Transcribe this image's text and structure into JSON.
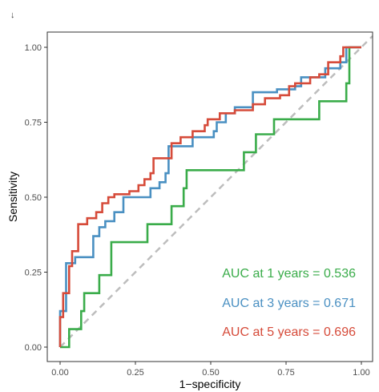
{
  "corner_mark": "↓",
  "chart_data": {
    "type": "line",
    "xlabel": "1−specificity",
    "ylabel": "Sensitivity",
    "xlim": [
      0,
      1
    ],
    "ylim": [
      0,
      1
    ],
    "x_ticks": [
      "0.00",
      "0.25",
      "0.50",
      "0.75",
      "1.00"
    ],
    "y_ticks": [
      "0.00",
      "0.25",
      "0.50",
      "0.75",
      "1.00"
    ],
    "grid": false,
    "reference_line": {
      "from": [
        0,
        0
      ],
      "to": [
        1,
        1
      ],
      "style": "dashed",
      "color": "#bdbdbd"
    },
    "annotations": [
      {
        "text": "AUC at 1 years = 0.536",
        "color": "#3aac4a"
      },
      {
        "text": "AUC at 3 years = 0.671",
        "color": "#4a90c2"
      },
      {
        "text": "AUC at 5 years = 0.696",
        "color": "#d64b3a"
      }
    ],
    "series": [
      {
        "color": "#3aac4a",
        "points": [
          [
            0,
            0
          ],
          [
            0.03,
            0
          ],
          [
            0.03,
            0.06
          ],
          [
            0.07,
            0.06
          ],
          [
            0.07,
            0.12
          ],
          [
            0.08,
            0.12
          ],
          [
            0.08,
            0.18
          ],
          [
            0.13,
            0.18
          ],
          [
            0.13,
            0.24
          ],
          [
            0.17,
            0.24
          ],
          [
            0.17,
            0.35
          ],
          [
            0.29,
            0.35
          ],
          [
            0.29,
            0.41
          ],
          [
            0.37,
            0.41
          ],
          [
            0.37,
            0.47
          ],
          [
            0.41,
            0.47
          ],
          [
            0.41,
            0.53
          ],
          [
            0.42,
            0.53
          ],
          [
            0.42,
            0.59
          ],
          [
            0.61,
            0.59
          ],
          [
            0.61,
            0.65
          ],
          [
            0.65,
            0.65
          ],
          [
            0.65,
            0.71
          ],
          [
            0.71,
            0.71
          ],
          [
            0.71,
            0.76
          ],
          [
            0.86,
            0.76
          ],
          [
            0.86,
            0.82
          ],
          [
            0.95,
            0.82
          ],
          [
            0.95,
            0.88
          ],
          [
            0.96,
            0.88
          ],
          [
            0.96,
            1.0
          ],
          [
            1.0,
            1.0
          ]
        ]
      },
      {
        "color": "#4a90c2",
        "points": [
          [
            0,
            0
          ],
          [
            0,
            0.12
          ],
          [
            0.02,
            0.12
          ],
          [
            0.02,
            0.28
          ],
          [
            0.05,
            0.28
          ],
          [
            0.05,
            0.3
          ],
          [
            0.11,
            0.3
          ],
          [
            0.11,
            0.37
          ],
          [
            0.13,
            0.37
          ],
          [
            0.13,
            0.4
          ],
          [
            0.15,
            0.4
          ],
          [
            0.15,
            0.42
          ],
          [
            0.18,
            0.42
          ],
          [
            0.18,
            0.45
          ],
          [
            0.21,
            0.45
          ],
          [
            0.21,
            0.5
          ],
          [
            0.3,
            0.5
          ],
          [
            0.3,
            0.53
          ],
          [
            0.33,
            0.53
          ],
          [
            0.33,
            0.55
          ],
          [
            0.35,
            0.55
          ],
          [
            0.35,
            0.58
          ],
          [
            0.36,
            0.58
          ],
          [
            0.36,
            0.67
          ],
          [
            0.44,
            0.67
          ],
          [
            0.44,
            0.7
          ],
          [
            0.51,
            0.7
          ],
          [
            0.51,
            0.72
          ],
          [
            0.52,
            0.72
          ],
          [
            0.52,
            0.75
          ],
          [
            0.55,
            0.75
          ],
          [
            0.55,
            0.78
          ],
          [
            0.58,
            0.78
          ],
          [
            0.58,
            0.8
          ],
          [
            0.64,
            0.8
          ],
          [
            0.64,
            0.85
          ],
          [
            0.72,
            0.85
          ],
          [
            0.72,
            0.86
          ],
          [
            0.78,
            0.86
          ],
          [
            0.78,
            0.87
          ],
          [
            0.8,
            0.87
          ],
          [
            0.8,
            0.9
          ],
          [
            0.88,
            0.9
          ],
          [
            0.88,
            0.93
          ],
          [
            0.93,
            0.93
          ],
          [
            0.93,
            0.95
          ],
          [
            0.95,
            0.95
          ],
          [
            0.95,
            1.0
          ],
          [
            1.0,
            1.0
          ]
        ]
      },
      {
        "color": "#d64b3a",
        "points": [
          [
            0,
            0
          ],
          [
            0,
            0.1
          ],
          [
            0.01,
            0.1
          ],
          [
            0.01,
            0.18
          ],
          [
            0.03,
            0.18
          ],
          [
            0.03,
            0.27
          ],
          [
            0.04,
            0.27
          ],
          [
            0.04,
            0.32
          ],
          [
            0.06,
            0.32
          ],
          [
            0.06,
            0.41
          ],
          [
            0.09,
            0.41
          ],
          [
            0.09,
            0.43
          ],
          [
            0.12,
            0.43
          ],
          [
            0.12,
            0.45
          ],
          [
            0.14,
            0.45
          ],
          [
            0.14,
            0.48
          ],
          [
            0.16,
            0.48
          ],
          [
            0.16,
            0.5
          ],
          [
            0.18,
            0.5
          ],
          [
            0.18,
            0.51
          ],
          [
            0.23,
            0.51
          ],
          [
            0.23,
            0.52
          ],
          [
            0.26,
            0.52
          ],
          [
            0.26,
            0.54
          ],
          [
            0.28,
            0.54
          ],
          [
            0.28,
            0.56
          ],
          [
            0.3,
            0.56
          ],
          [
            0.3,
            0.58
          ],
          [
            0.31,
            0.58
          ],
          [
            0.31,
            0.63
          ],
          [
            0.37,
            0.63
          ],
          [
            0.37,
            0.68
          ],
          [
            0.4,
            0.68
          ],
          [
            0.4,
            0.7
          ],
          [
            0.44,
            0.7
          ],
          [
            0.44,
            0.72
          ],
          [
            0.48,
            0.72
          ],
          [
            0.48,
            0.74
          ],
          [
            0.49,
            0.74
          ],
          [
            0.49,
            0.76
          ],
          [
            0.53,
            0.76
          ],
          [
            0.53,
            0.78
          ],
          [
            0.58,
            0.78
          ],
          [
            0.58,
            0.79
          ],
          [
            0.64,
            0.79
          ],
          [
            0.64,
            0.81
          ],
          [
            0.68,
            0.81
          ],
          [
            0.68,
            0.83
          ],
          [
            0.73,
            0.83
          ],
          [
            0.73,
            0.84
          ],
          [
            0.76,
            0.84
          ],
          [
            0.76,
            0.87
          ],
          [
            0.78,
            0.87
          ],
          [
            0.78,
            0.88
          ],
          [
            0.83,
            0.88
          ],
          [
            0.83,
            0.9
          ],
          [
            0.86,
            0.9
          ],
          [
            0.86,
            0.91
          ],
          [
            0.89,
            0.91
          ],
          [
            0.89,
            0.95
          ],
          [
            0.93,
            0.95
          ],
          [
            0.93,
            0.97
          ],
          [
            0.94,
            0.97
          ],
          [
            0.94,
            1.0
          ],
          [
            1.0,
            1.0
          ]
        ]
      }
    ]
  }
}
